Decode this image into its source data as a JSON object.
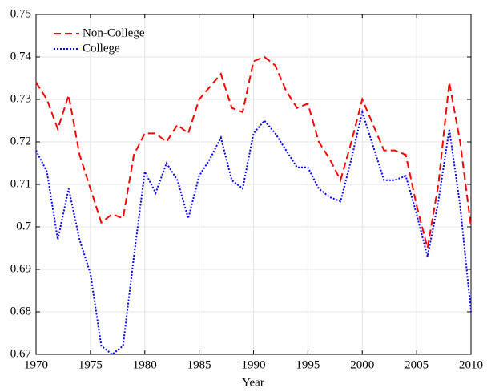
{
  "chart_data": {
    "type": "line",
    "xlabel": "Year",
    "x": [
      1970,
      1971,
      1972,
      1973,
      1974,
      1975,
      1976,
      1977,
      1978,
      1979,
      1980,
      1981,
      1982,
      1983,
      1984,
      1985,
      1986,
      1987,
      1988,
      1989,
      1990,
      1991,
      1992,
      1993,
      1994,
      1995,
      1996,
      1997,
      1998,
      1999,
      2000,
      2001,
      2002,
      2003,
      2004,
      2005,
      2006,
      2007,
      2008,
      2009,
      2010
    ],
    "series": [
      {
        "name": "Non-College",
        "color": "#ff0000",
        "dash": "dashed",
        "values": [
          0.734,
          0.73,
          0.723,
          0.731,
          0.717,
          0.709,
          0.701,
          0.703,
          0.702,
          0.717,
          0.722,
          0.722,
          0.72,
          0.724,
          0.722,
          0.73,
          0.733,
          0.736,
          0.728,
          0.727,
          0.739,
          0.74,
          0.738,
          0.732,
          0.728,
          0.729,
          0.72,
          0.716,
          0.711,
          0.72,
          0.73,
          0.724,
          0.718,
          0.718,
          0.717,
          0.705,
          0.695,
          0.71,
          0.734,
          0.72,
          0.7
        ]
      },
      {
        "name": "College",
        "color": "#0000ff",
        "dash": "dotted",
        "values": [
          0.718,
          0.713,
          0.697,
          0.709,
          0.697,
          0.689,
          0.672,
          0.67,
          0.672,
          0.693,
          0.713,
          0.708,
          0.715,
          0.711,
          0.702,
          0.712,
          0.716,
          0.721,
          0.711,
          0.709,
          0.722,
          0.725,
          0.722,
          0.718,
          0.714,
          0.714,
          0.709,
          0.707,
          0.706,
          0.716,
          0.727,
          0.719,
          0.711,
          0.711,
          0.712,
          0.703,
          0.693,
          0.706,
          0.723,
          0.705,
          0.68
        ]
      }
    ],
    "xlim": [
      1970,
      2010
    ],
    "xticks": [
      1970,
      1975,
      1980,
      1985,
      1990,
      1995,
      2000,
      2005,
      2010
    ],
    "ylim": [
      0.67,
      0.75
    ],
    "yticks": [
      0.67,
      0.68,
      0.69,
      0.7,
      0.71,
      0.72,
      0.73,
      0.74,
      0.75
    ],
    "grid": true,
    "legend": "upper-left"
  }
}
